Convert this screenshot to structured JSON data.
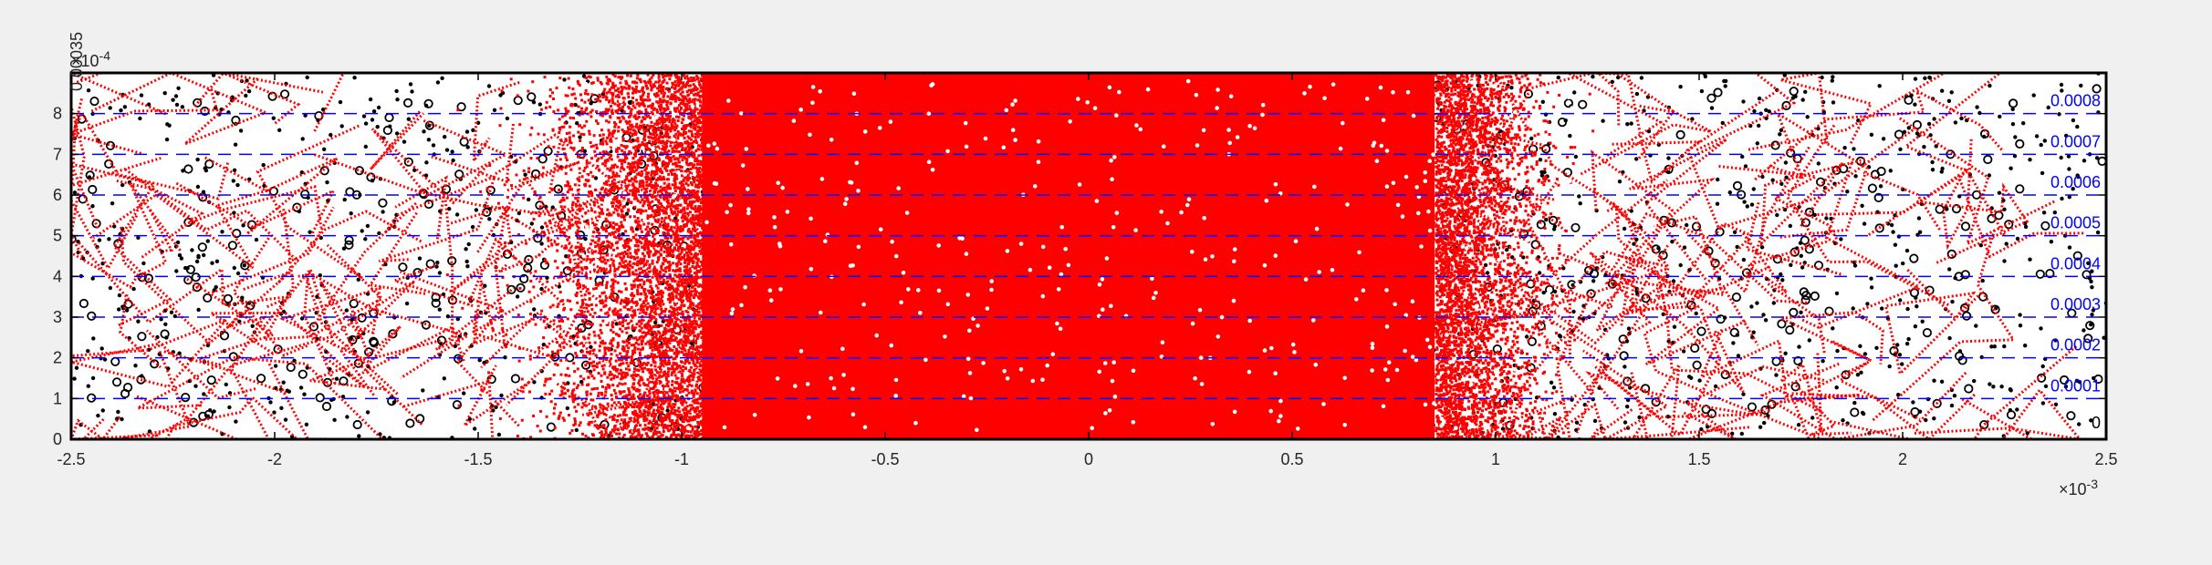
{
  "figure": {
    "background": "#f0f0f0"
  },
  "chart_data": {
    "type": "scatter",
    "title": "",
    "xlabel": "",
    "ylabel": "",
    "xlim": [
      -2.5,
      2.5
    ],
    "ylim": [
      0,
      9
    ],
    "grid": false,
    "x_exponent_label": "×10",
    "x_exponent_power": "-3",
    "y_exponent_label": "×10",
    "y_exponent_power": "-4",
    "x_tick_values": [
      -2.5,
      -2,
      -1.5,
      -1,
      -0.5,
      0,
      0.5,
      1,
      1.5,
      2,
      2.5
    ],
    "x_tick_labels": [
      "-2.5",
      "-2",
      "-1.5",
      "-1",
      "-0.5",
      "0",
      "0.5",
      "1",
      "1.5",
      "2",
      "2.5"
    ],
    "y_tick_values": [
      0,
      1,
      2,
      3,
      4,
      5,
      6,
      7,
      8
    ],
    "y_tick_labels": [
      "0",
      "1",
      "2",
      "3",
      "4",
      "5",
      "6",
      "7",
      "8"
    ],
    "level_lines": {
      "color": "#0000ff",
      "style": "dashed",
      "y_values": [
        1,
        2,
        3,
        4,
        5,
        6,
        7,
        8
      ],
      "labels": [
        "0.0001",
        "0.0002",
        "0.0003",
        "0.0004",
        "0.0005",
        "0.0006",
        "0.0007",
        "0.0008"
      ],
      "zero_label": "0"
    },
    "corner_label": "0.00035",
    "series": [
      {
        "role": "particles-small",
        "marker": "dot",
        "color": "#000000"
      },
      {
        "role": "particles-large",
        "marker": "circle-open",
        "color": "#000000"
      },
      {
        "role": "trajectories",
        "marker": "dotted-line",
        "color": "#ff0000",
        "dense_x_range": [
          -1.5,
          1.2
        ]
      },
      {
        "role": "highlighted-particles",
        "marker": "dot",
        "color": "#ffffff"
      }
    ],
    "colors": {
      "axes": "#000000",
      "background": "#ffffff",
      "trajectory": "#ff0000",
      "level": "#0000ff"
    }
  }
}
